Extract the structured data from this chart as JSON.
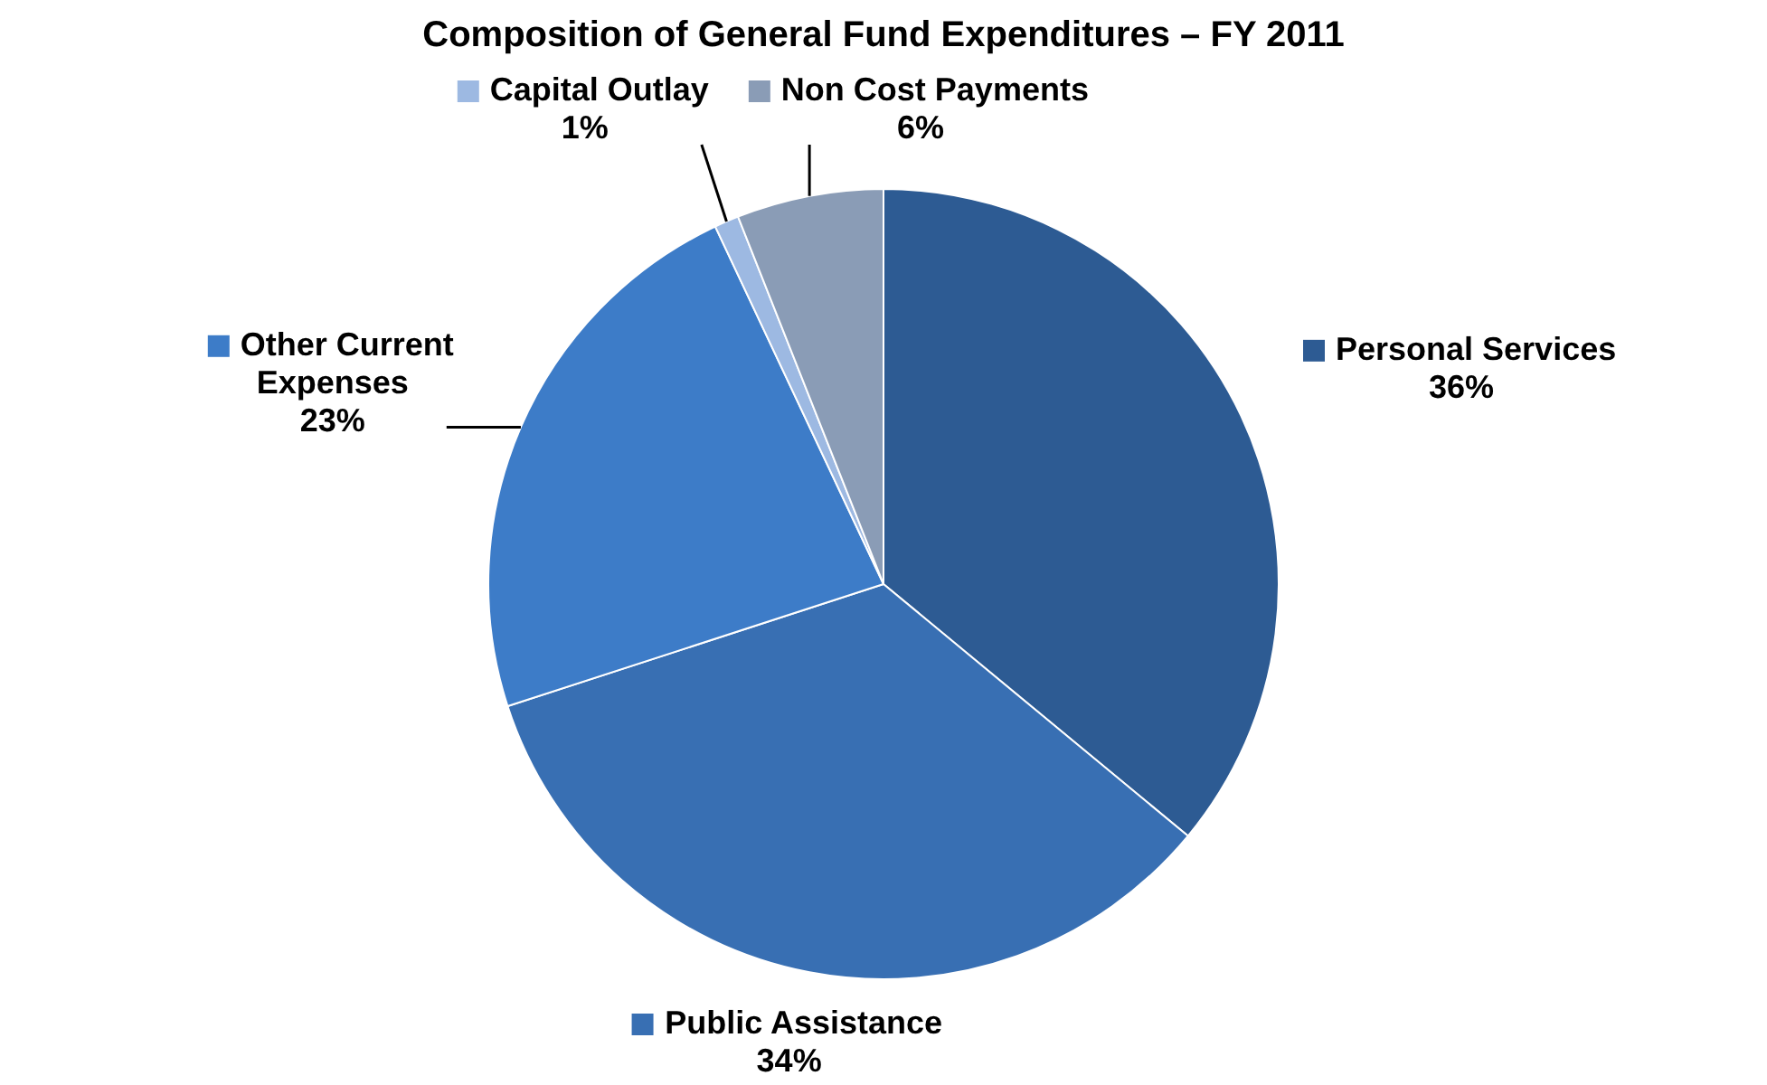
{
  "chart_data": {
    "type": "pie",
    "title": "Composition of General Fund Expenditures – FY 2011",
    "categories": [
      "Personal Services",
      "Public Assistance",
      "Other Current Expenses",
      "Capital Outlay",
      "Non Cost Payments"
    ],
    "values": [
      36,
      34,
      23,
      1,
      6
    ],
    "colors": [
      "#2d5b93",
      "#386fb3",
      "#3d7cc8",
      "#9db9e2",
      "#8a9cb6"
    ],
    "value_labels": [
      "36%",
      "34%",
      "23%",
      "1%",
      "6%"
    ],
    "legend": "right"
  }
}
